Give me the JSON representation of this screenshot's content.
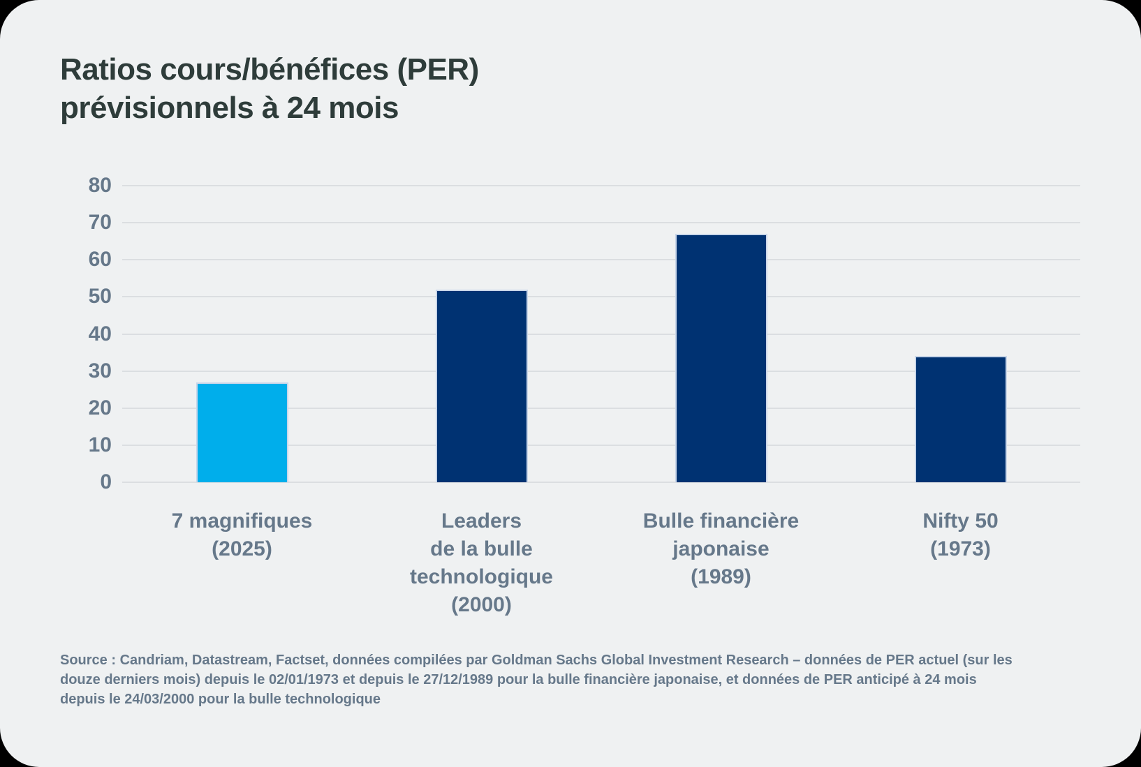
{
  "page": {
    "outer_background": "#000000",
    "card_background": "#EFF1F2"
  },
  "header": {
    "title": "Ratios cours/bénéfices (PER)\nprévisionnels à 24 mois"
  },
  "chart_data": {
    "type": "bar",
    "title": "Ratios cours/bénéfices (PER) prévisionnels à 24 mois",
    "categories": [
      "7 magnifiques\n(2025)",
      "Leaders\nde la bulle\ntechnologique\n(2000)",
      "Bulle financière\njaponaise\n(1989)",
      "Nifty 50\n(1973)"
    ],
    "values": [
      27,
      52,
      67,
      34
    ],
    "bar_colors": [
      "#00AEEB",
      "#003272",
      "#003272",
      "#003272"
    ],
    "xlabel": "",
    "ylabel": "",
    "ylim": [
      0,
      80
    ],
    "yticks": [
      0,
      10,
      20,
      30,
      40,
      50,
      60,
      70,
      80
    ],
    "grid": "horizontal",
    "legend": "none"
  },
  "source": {
    "text": "Source : Candriam, Datastream, Factset, données compilées par Goldman Sachs Global Investment Research – données de PER actuel (sur les douze derniers mois) depuis le 02/01/1973 et depuis le 27/12/1989 pour la bulle financière japonaise, et données de PER anticipé à 24 mois depuis le 24/03/2000 pour la bulle technologique"
  },
  "colors": {
    "title_text": "#2E3C3A",
    "axis_text": "#66788A",
    "gridline": "#DBDEE1",
    "bar_border": "#C9D6E9",
    "highlight_bar": "#00AEEB",
    "navy_bar": "#003272"
  }
}
